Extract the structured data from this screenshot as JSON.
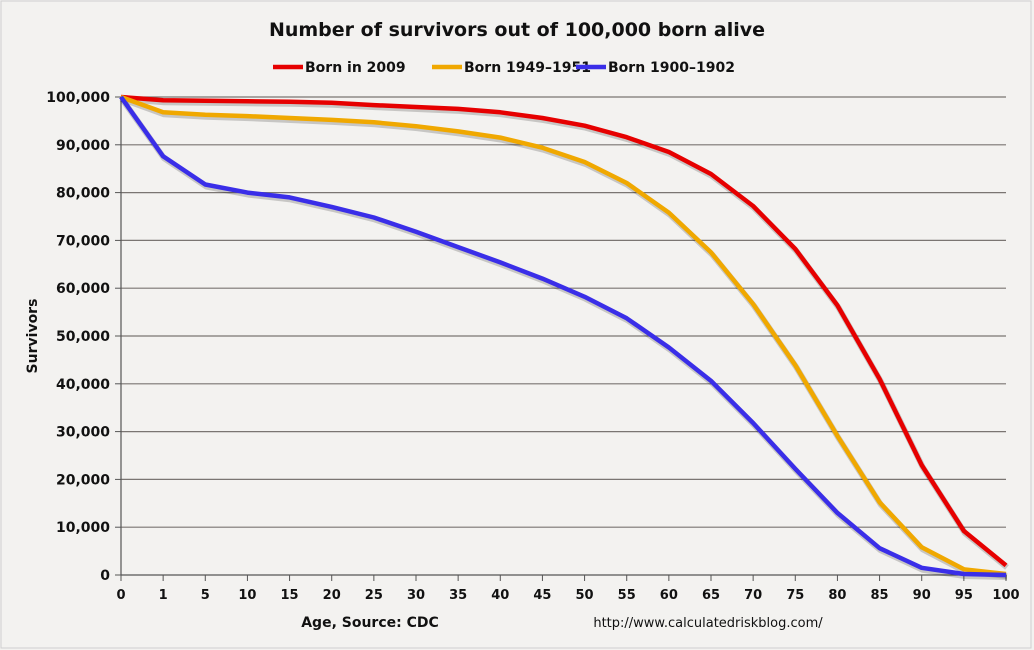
{
  "chart_data": {
    "type": "line",
    "title": "Number of survivors out of 100,000 born alive",
    "xlabel": "Age, Source: CDC",
    "ylabel": "Survivors",
    "source_note": "http://www.calculatedriskblog.com/",
    "categories": [
      "0",
      "1",
      "5",
      "10",
      "15",
      "20",
      "25",
      "30",
      "35",
      "40",
      "45",
      "50",
      "55",
      "60",
      "65",
      "70",
      "75",
      "80",
      "85",
      "90",
      "95",
      "100"
    ],
    "ylim": [
      0,
      100000
    ],
    "yticks": [
      "0",
      "10,000",
      "20,000",
      "30,000",
      "40,000",
      "50,000",
      "60,000",
      "70,000",
      "80,000",
      "90,000",
      "100,000"
    ],
    "grid": true,
    "legend_placement": "top",
    "series": [
      {
        "name": "Born in 2009",
        "color": "#e60000",
        "values": [
          100000,
          99300,
          99200,
          99100,
          99000,
          98800,
          98300,
          97900,
          97500,
          96800,
          95600,
          94000,
          91600,
          88500,
          83900,
          77200,
          68200,
          56400,
          41000,
          23000,
          9200,
          2000
        ]
      },
      {
        "name": "Born 1949–1951",
        "color": "#f0a800",
        "values": [
          100000,
          96800,
          96300,
          96000,
          95600,
          95200,
          94700,
          93900,
          92800,
          91500,
          89400,
          86400,
          82000,
          75800,
          67500,
          56700,
          43900,
          29100,
          15200,
          5800,
          1200,
          200
        ]
      },
      {
        "name": "Born 1900–1902",
        "color": "#3a2ee8",
        "values": [
          100000,
          87600,
          81700,
          80000,
          79000,
          77000,
          74800,
          71800,
          68600,
          65400,
          62000,
          58200,
          53700,
          47600,
          40600,
          31800,
          22200,
          13000,
          5600,
          1500,
          200,
          0
        ]
      }
    ]
  }
}
